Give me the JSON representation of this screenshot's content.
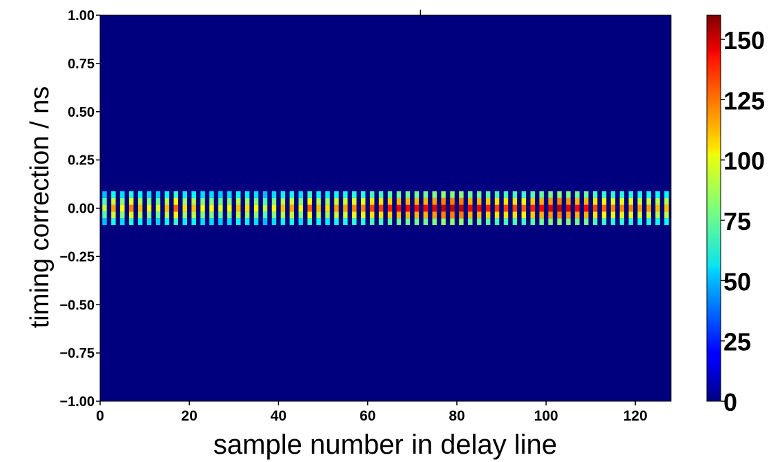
{
  "chart_data": {
    "type": "heatmap",
    "title": "",
    "xlabel": "sample number in delay line",
    "ylabel": "timing correction / ns",
    "xlim": [
      0,
      128
    ],
    "ylim": [
      -1.0,
      1.0
    ],
    "x_ticks": [
      "0",
      "20",
      "40",
      "60",
      "80",
      "100",
      "120"
    ],
    "x_tick_values": [
      0,
      20,
      40,
      60,
      80,
      100,
      120
    ],
    "y_ticks": [
      "1.00",
      "0.75",
      "0.50",
      "0.25",
      "0.00",
      "−0.25",
      "−0.50",
      "−0.75",
      "−1.00"
    ],
    "y_tick_values": [
      1.0,
      0.75,
      0.5,
      0.25,
      0.0,
      -0.25,
      -0.5,
      -0.75,
      -1.0
    ],
    "colorbar": {
      "colormap": "jet",
      "range": [
        0,
        160
      ],
      "ticks": [
        "0",
        "25",
        "50",
        "75",
        "100",
        "125",
        "150"
      ],
      "tick_values": [
        0,
        25,
        50,
        75,
        100,
        125,
        150
      ]
    },
    "grid": false,
    "n_columns": 64,
    "column_width": 2,
    "peak_counts": [
      90,
      115,
      100,
      120,
      110,
      100,
      95,
      110,
      125,
      105,
      110,
      100,
      100,
      95,
      100,
      110,
      105,
      100,
      90,
      100,
      110,
      115,
      100,
      125,
      110,
      105,
      115,
      115,
      120,
      120,
      130,
      130,
      135,
      140,
      140,
      140,
      140,
      145,
      150,
      150,
      150,
      140,
      140,
      135,
      130,
      130,
      130,
      125,
      135,
      140,
      145,
      150,
      145,
      140,
      140,
      130,
      125,
      120,
      120,
      120,
      115,
      115,
      110,
      110
    ],
    "bin_values_ns": [
      -0.07,
      -0.035,
      0.0,
      0.035,
      0.07
    ],
    "bin_profile": [
      0.55,
      0.8,
      1.0,
      0.8,
      0.55
    ]
  }
}
